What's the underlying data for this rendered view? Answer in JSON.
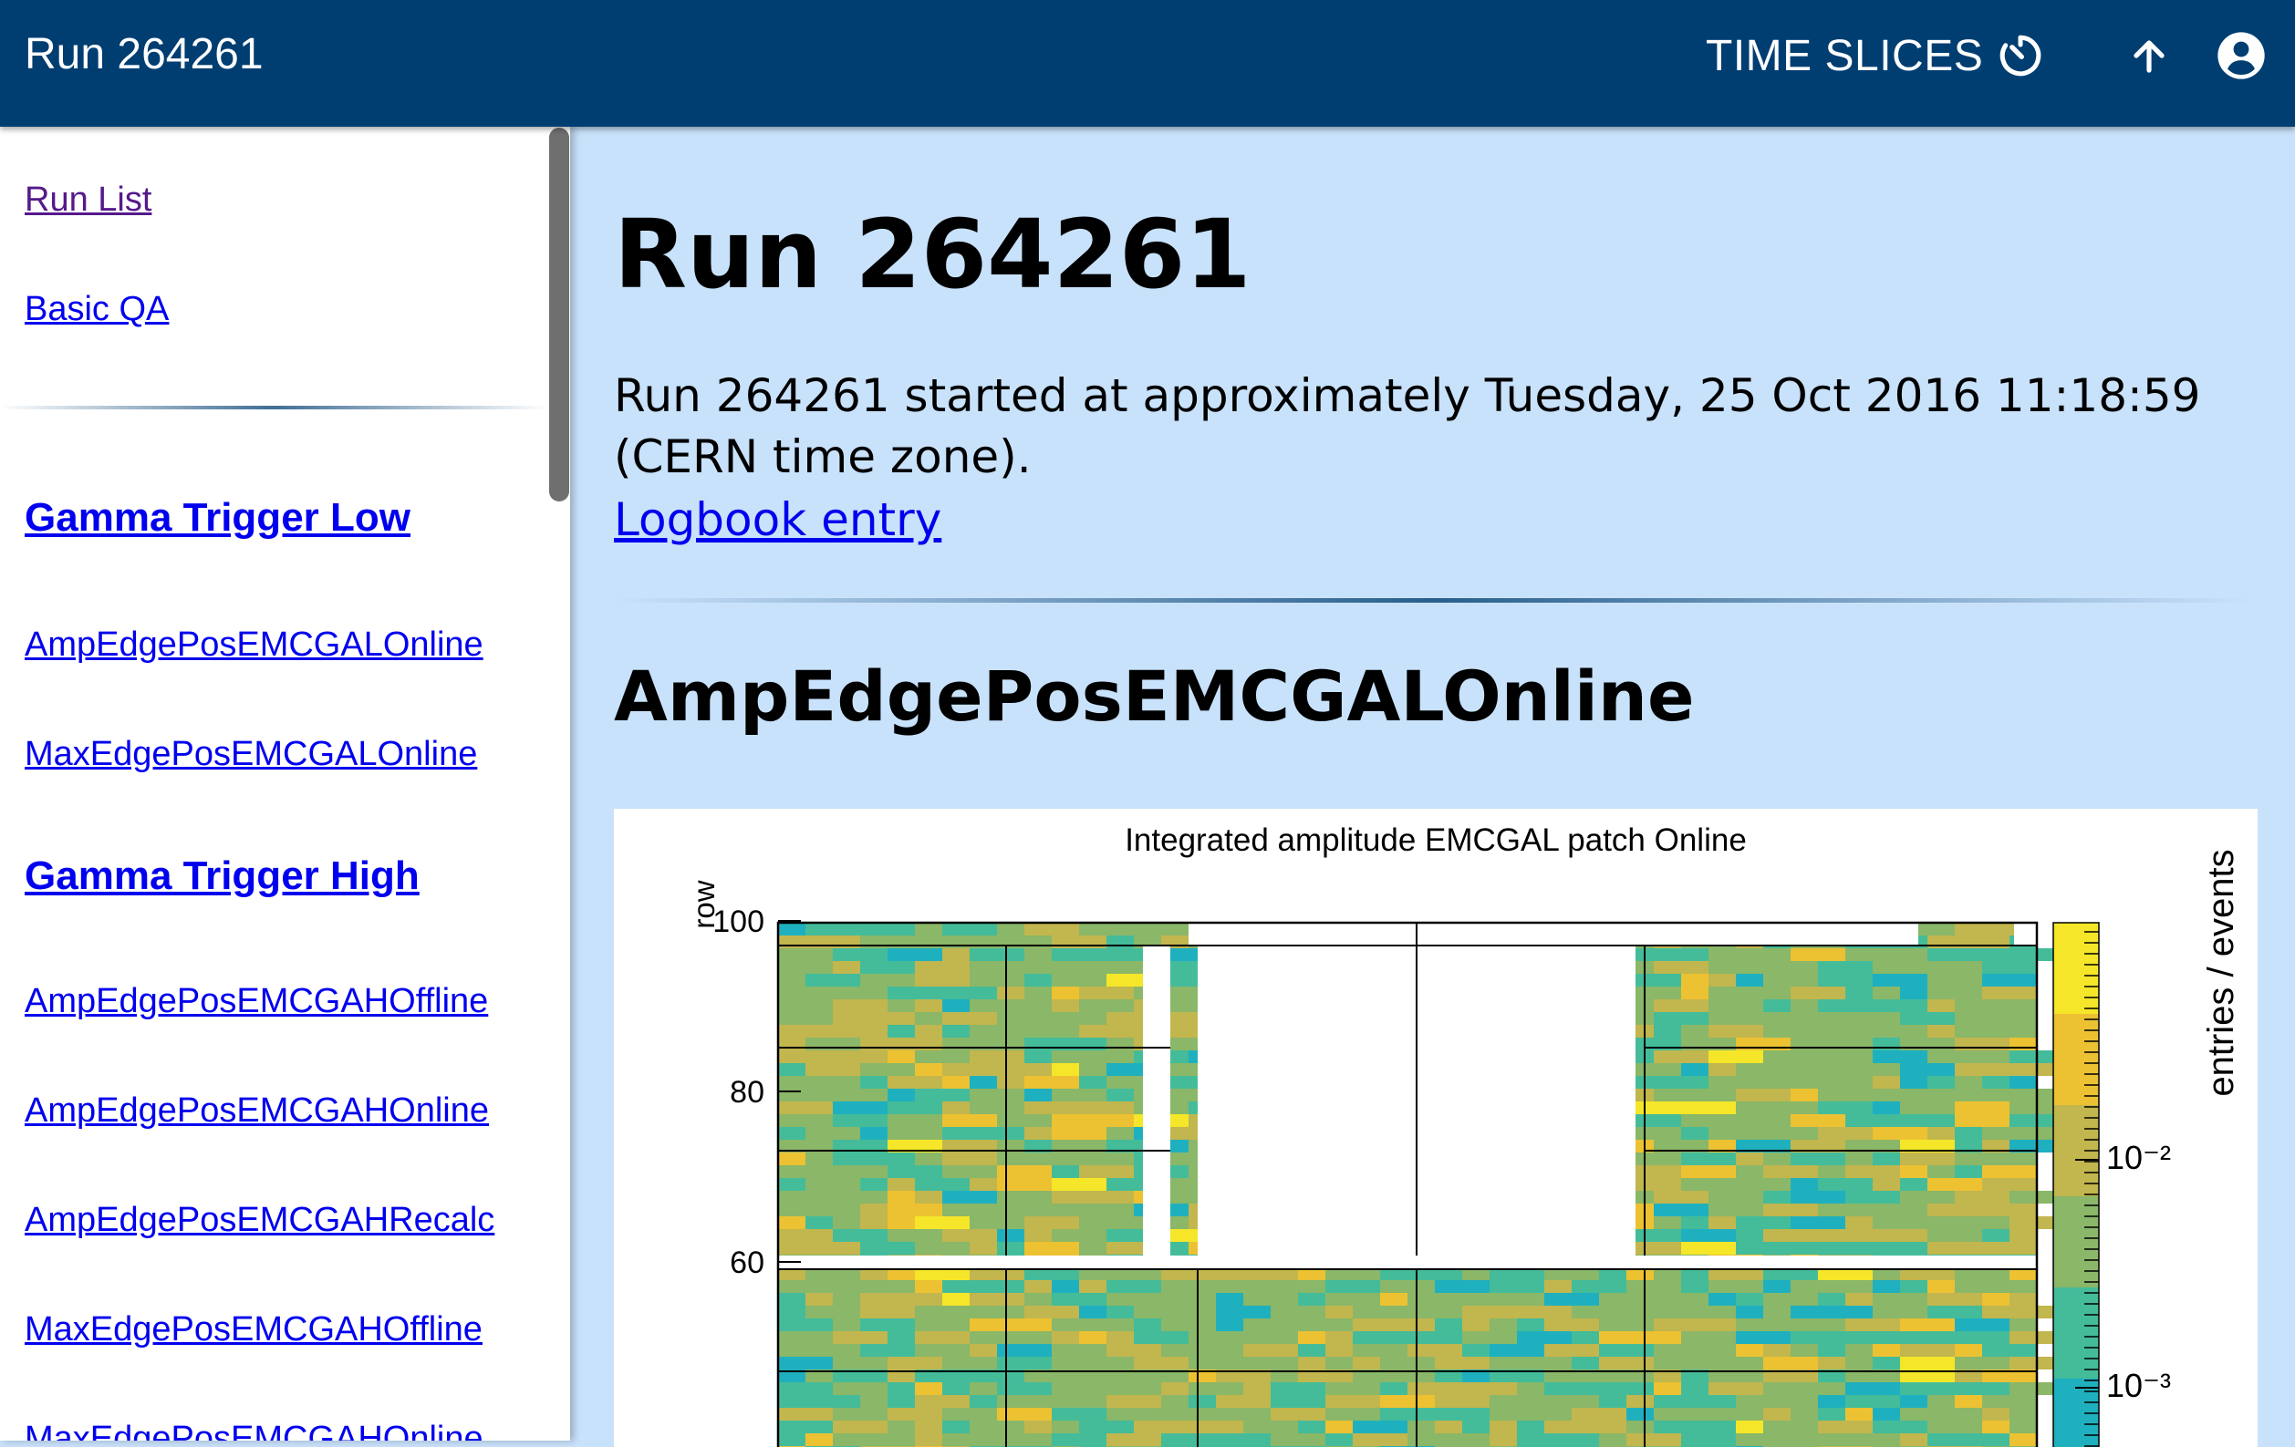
{
  "appbar": {
    "title": "Run 264261",
    "time_slices_label": "TIME SLICES",
    "timer_icon": "timer-icon",
    "up_icon": "arrow-up-icon",
    "account_icon": "account-circle-icon",
    "background": "#003e72"
  },
  "sidebar": {
    "links": [
      {
        "label": "Run List",
        "visited": true
      },
      {
        "label": "Basic QA"
      }
    ],
    "groups": [
      {
        "title": "Gamma Trigger Low",
        "items": [
          "AmpEdgePosEMCGALOnline",
          "MaxEdgePosEMCGALOnline"
        ]
      },
      {
        "title": "Gamma Trigger High",
        "items": [
          "AmpEdgePosEMCGAHOffline",
          "AmpEdgePosEMCGAHOnline",
          "AmpEdgePosEMCGAHRecalc",
          "MaxEdgePosEMCGAHOffline",
          "MaxEdgePosEMCGAHOnline"
        ]
      }
    ]
  },
  "main": {
    "title": "Run 264261",
    "info_line1": "Run 264261 started at approximately Tuesday, 25 Oct 2016 11:18:59",
    "info_line2": "(CERN time zone).",
    "logbook_label": "Logbook entry",
    "section_title": "AmpEdgePosEMCGALOnline"
  },
  "chart_data": {
    "type": "heatmap",
    "title": "Integrated amplitude EMCGAL patch Online",
    "ylabel": "row",
    "zlabel": "entries / events",
    "y_ticks": [
      100,
      80,
      60
    ],
    "z_ticks": [
      "10⁻²",
      "10⁻³"
    ],
    "z_scale": "log",
    "colormap": [
      "#1fb0bf",
      "#44bc9a",
      "#8ab768",
      "#c2b64e",
      "#ecc232",
      "#f5e629"
    ]
  }
}
